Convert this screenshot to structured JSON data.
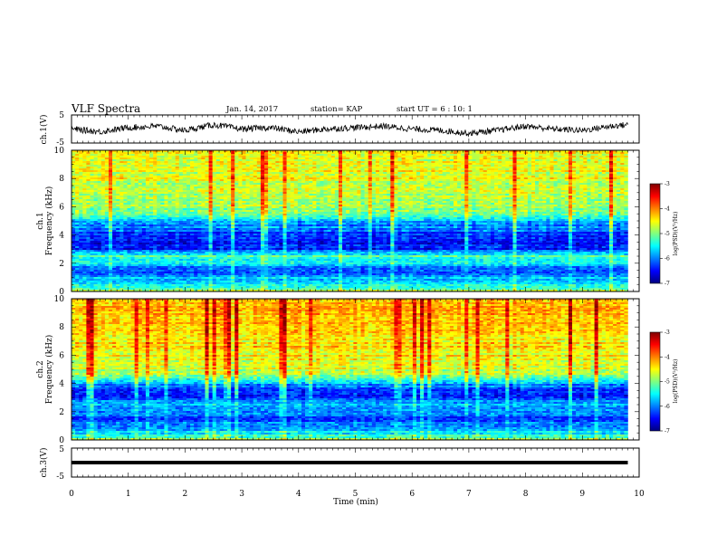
{
  "header": {
    "title": "VLF Spectra",
    "date": "Jan. 14, 2017",
    "station": "station= KAP",
    "start": "start UT =  6 : 10: 1"
  },
  "colors": {
    "scale": [
      "#00007f",
      "#0000ff",
      "#0080ff",
      "#00ffff",
      "#80ff80",
      "#ffff00",
      "#ff8000",
      "#ff0000",
      "#7f0000"
    ],
    "trace": "#000000"
  },
  "chart_data": [
    {
      "type": "line",
      "id": "ch1-waveform",
      "ylabel": "ch.1(V)",
      "xlim": [
        0,
        10
      ],
      "ylim": [
        -5,
        5
      ],
      "ytick_labels": [
        "5",
        "-5"
      ],
      "description_series": [
        {
          "x": [
            0,
            0.5,
            1,
            1.5,
            2,
            2.5,
            3,
            3.5,
            4,
            4.5,
            5,
            5.5,
            6,
            6.5,
            7,
            7.5,
            8,
            8.5,
            9,
            9.5,
            9.8
          ],
          "values": [
            0,
            -1,
            0.5,
            1,
            -0.5,
            1.5,
            0,
            0.5,
            -1,
            0,
            0.5,
            1,
            0,
            -0.5,
            -1.5,
            -0.5,
            1,
            0,
            -0.5,
            1,
            1.5
          ]
        }
      ]
    },
    {
      "type": "heatmap",
      "id": "ch1-spectrogram",
      "ylabel": "Frequency (kHz)",
      "channel_label": "ch.1",
      "xlim": [
        0,
        10
      ],
      "ylim": [
        0,
        10
      ],
      "ytick_labels": [
        "0",
        "2",
        "4",
        "6",
        "8",
        "10"
      ],
      "colorbar": {
        "label": "log(PSD)(V²/Hz)",
        "range": [
          -7,
          -3
        ],
        "tick_labels": [
          "-3",
          "-4",
          "-5",
          "-6",
          "-7"
        ]
      },
      "frequency_kHz": [
        0,
        0.5,
        1,
        1.5,
        2,
        2.5,
        3,
        3.5,
        4,
        4.5,
        5,
        5.5,
        6,
        6.5,
        7,
        7.5,
        8,
        8.5,
        9,
        9.5,
        10
      ],
      "log_psd_profile": [
        -4.8,
        -5.5,
        -5.8,
        -6.2,
        -5.6,
        -5.2,
        -6.4,
        -6.5,
        -6.4,
        -6.0,
        -5.8,
        -5.0,
        -4.9,
        -4.8,
        -4.7,
        -4.7,
        -4.6,
        -4.6,
        -4.6,
        -4.6,
        -4.6
      ]
    },
    {
      "type": "heatmap",
      "id": "ch2-spectrogram",
      "ylabel": "Frequency (kHz)",
      "channel_label": "ch.2",
      "xlim": [
        0,
        10
      ],
      "ylim": [
        0,
        10
      ],
      "ytick_labels": [
        "0",
        "2",
        "4",
        "6",
        "8",
        "10"
      ],
      "colorbar": {
        "label": "log(PSD)(V²/Hz)",
        "range": [
          -7,
          -3
        ],
        "tick_labels": [
          "-3",
          "-4",
          "-5",
          "-6",
          "-7"
        ]
      },
      "frequency_kHz": [
        0,
        0.5,
        1,
        1.5,
        2,
        2.5,
        3,
        3.5,
        4,
        4.5,
        5,
        5.5,
        6,
        6.5,
        7,
        7.5,
        8,
        8.5,
        9,
        9.5,
        10
      ],
      "log_psd_profile": [
        -4.9,
        -5.6,
        -6.0,
        -6.3,
        -5.9,
        -5.7,
        -6.4,
        -6.4,
        -5.8,
        -5.0,
        -4.7,
        -4.6,
        -4.5,
        -4.4,
        -4.4,
        -4.3,
        -4.3,
        -4.2,
        -4.2,
        -4.3,
        -4.3
      ]
    },
    {
      "type": "line",
      "id": "ch3-waveform",
      "ylabel": "ch.3(V)",
      "xlabel": "Time (min)",
      "xlim": [
        0,
        10
      ],
      "ylim": [
        -5,
        5
      ],
      "ytick_labels": [
        "5",
        "-5"
      ],
      "xtick_labels": [
        "0",
        "1",
        "2",
        "3",
        "4",
        "5",
        "6",
        "7",
        "8",
        "9",
        "10"
      ],
      "series": [
        {
          "x": [
            0,
            9.8
          ],
          "values": [
            0,
            0
          ]
        }
      ]
    }
  ]
}
